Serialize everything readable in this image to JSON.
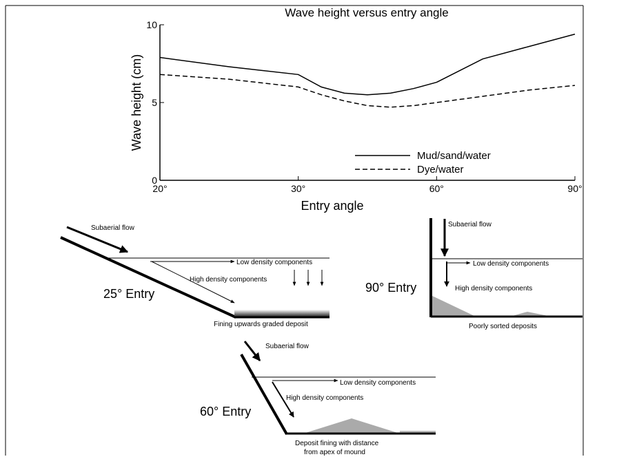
{
  "chart_data": {
    "type": "line",
    "title": "Wave height versus entry angle",
    "x_label": "Entry angle",
    "y_label": "Wave height (cm)",
    "x": [
      20,
      25,
      30,
      35,
      40,
      45,
      50,
      55,
      60,
      70,
      80,
      90
    ],
    "series": [
      {
        "name": "Mud/sand/water",
        "color": "#000000",
        "dash": "solid",
        "values": [
          7.9,
          7.3,
          6.8,
          6.0,
          5.6,
          5.5,
          5.6,
          5.9,
          6.3,
          7.8,
          8.6,
          9.4
        ]
      },
      {
        "name": "Dye/water",
        "color": "#000000",
        "dash": "dashed",
        "values": [
          6.8,
          6.5,
          6.0,
          5.5,
          5.1,
          4.8,
          4.7,
          4.8,
          5.0,
          5.4,
          5.8,
          6.1
        ]
      }
    ],
    "xlim": [
      20,
      90
    ],
    "xticks": [
      {
        "value": 20,
        "label": "20°"
      },
      {
        "value": 30,
        "label": "30°"
      },
      {
        "value": 60,
        "label": "60°"
      },
      {
        "value": 90,
        "label": "90°"
      }
    ],
    "ylim": [
      0,
      10
    ],
    "yticks": [
      0,
      5,
      10
    ],
    "grid": false,
    "legend": "lower right"
  },
  "diagrams": [
    {
      "title": "25° Entry",
      "flow": "Subaerial flow",
      "low": "Low density components",
      "high": "High density components",
      "deposit": "Fining upwards graded deposit"
    },
    {
      "title": "90° Entry",
      "flow": "Subaerial flow",
      "low": "Low density components",
      "high": "High density components",
      "deposit": "Poorly sorted deposits"
    },
    {
      "title": "60° Entry",
      "flow": "Subaerial flow",
      "low": "Low density components",
      "high": "High density components",
      "deposit": "Deposit fining with distance",
      "deposit2": "from apex of mound"
    }
  ]
}
